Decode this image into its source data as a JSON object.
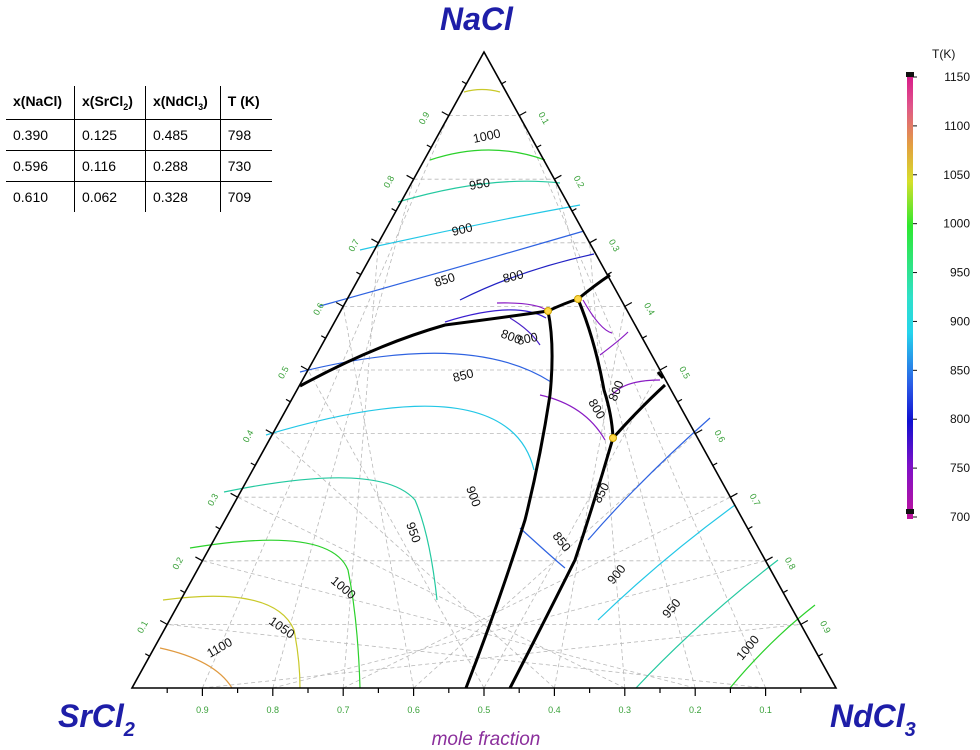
{
  "vertices": {
    "top": "NaCl",
    "left": "SrCl",
    "left_sub": "2",
    "right": "NdCl",
    "right_sub": "3"
  },
  "axis_title": "mole fraction",
  "tick_values": [
    "0.1",
    "0.2",
    "0.3",
    "0.4",
    "0.5",
    "0.6",
    "0.7",
    "0.8",
    "0.9"
  ],
  "table": {
    "headers": [
      {
        "base": "x(NaCl)",
        "sub": "",
        "tail": ""
      },
      {
        "base": "x(SrCl",
        "sub": "2",
        "tail": ")"
      },
      {
        "base": "x(NdCl",
        "sub": "3",
        "tail": ")"
      },
      {
        "base": "T (K)",
        "sub": "",
        "tail": ""
      }
    ],
    "rows": [
      [
        "0.390",
        "0.125",
        "0.485",
        "798"
      ],
      [
        "0.596",
        "0.116",
        "0.288",
        "730"
      ],
      [
        "0.610",
        "0.062",
        "0.328",
        "709"
      ]
    ]
  },
  "colorbar": {
    "title": "T(K)",
    "ticks": [
      "1150",
      "1100",
      "1050",
      "1000",
      "950",
      "900",
      "850",
      "800",
      "750",
      "700"
    ]
  },
  "isotherm_labels": [
    "1000",
    "950",
    "900",
    "850",
    "800",
    "800",
    "800",
    "850",
    "900",
    "950",
    "1000",
    "1050",
    "1100",
    "800",
    "800",
    "850",
    "850",
    "900",
    "950",
    "1000"
  ],
  "chart_data": {
    "type": "ternary-phase-diagram",
    "components": [
      "NaCl",
      "SrCl2",
      "NdCl3"
    ],
    "temperature_range_K": [
      700,
      1150
    ],
    "invariant_points": [
      {
        "x_NaCl": 0.39,
        "x_SrCl2": 0.125,
        "x_NdCl3": 0.485,
        "T_K": 798
      },
      {
        "x_NaCl": 0.596,
        "x_SrCl2": 0.116,
        "x_NdCl3": 0.288,
        "T_K": 730
      },
      {
        "x_NaCl": 0.61,
        "x_SrCl2": 0.062,
        "x_NdCl3": 0.328,
        "T_K": 709
      }
    ],
    "isotherm_levels_K": [
      800,
      850,
      900,
      950,
      1000,
      1050,
      1100
    ]
  }
}
